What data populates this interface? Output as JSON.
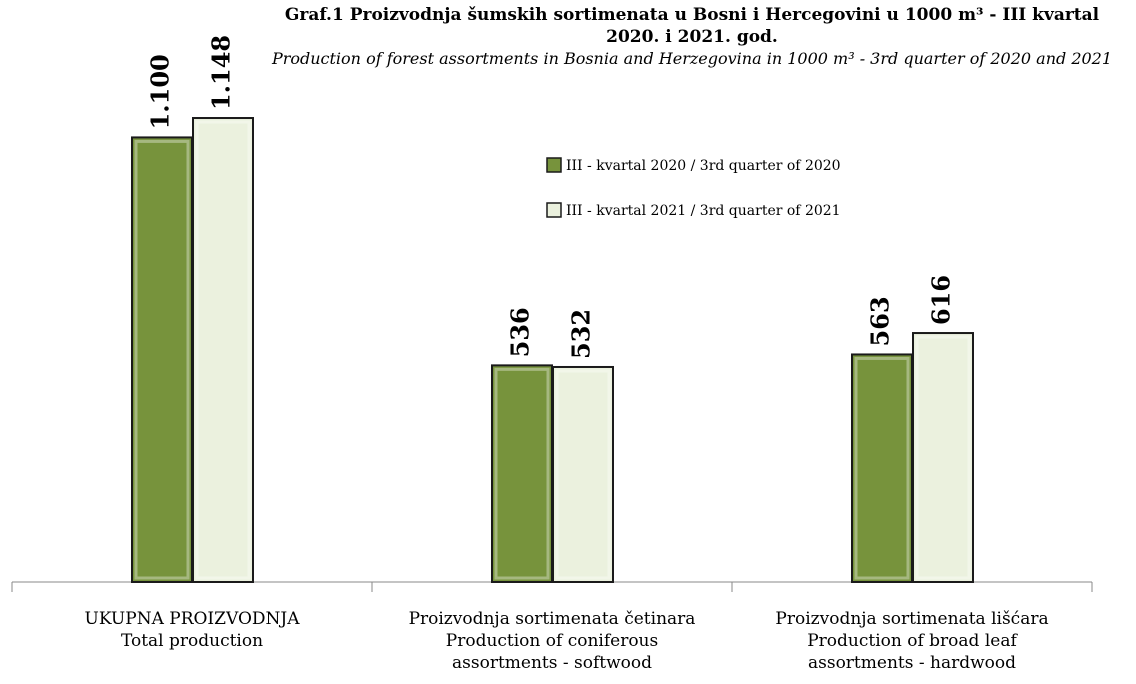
{
  "chart_data": {
    "type": "bar",
    "title": "Graf.1 Proizvodnja šumskih sortimenata u Bosni i Hercegovini u 1000 m³ - III kvartal 2020. i 2021. god.",
    "subtitle": "Production of forest assortments in  Bosnia and Herzegovina  in 1000 m³ - 3rd quarter of 2020 and 2021",
    "categories": [
      "UKUPNA PROIZVODNJA\nTotal production",
      "Proizvodnja sortimenata četinara\nProduction of coniferous\nassortments - softwood",
      "Proizvodnja sortimenata lišćara\nProduction of broad leaf\nassortments - hardwood"
    ],
    "series": [
      {
        "name": "III - kvartal 2020 / 3rd quarter of 2020",
        "color": "#77933c",
        "values": [
          1100,
          536,
          563
        ],
        "value_labels": [
          "1.100",
          "536",
          "563"
        ]
      },
      {
        "name": "III - kvartal 2021 / 3rd quarter of 2021",
        "color": "#ebf1de",
        "values": [
          1148,
          532,
          616
        ],
        "value_labels": [
          "1.148",
          "532",
          "616"
        ]
      }
    ],
    "ylim": [
      0,
      1200
    ],
    "legend": "top"
  }
}
